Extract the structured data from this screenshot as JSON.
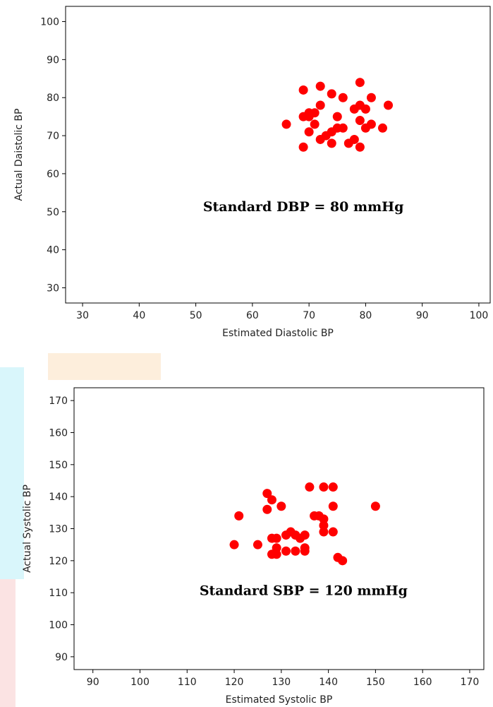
{
  "chart_data": [
    {
      "type": "scatter",
      "title": "",
      "xlabel": "Estimated Diastolic BP",
      "ylabel": "Actual Daistolic BP",
      "xlim": [
        27,
        102
      ],
      "ylim": [
        26,
        104
      ],
      "xticks": [
        30,
        40,
        50,
        60,
        70,
        80,
        90,
        100
      ],
      "yticks": [
        30,
        40,
        50,
        60,
        70,
        80,
        90,
        100
      ],
      "grid": false,
      "color": "#ff0000",
      "annotation": "Standard DBP = 80 mmHg",
      "points": [
        {
          "x": 66,
          "y": 73
        },
        {
          "x": 69,
          "y": 67
        },
        {
          "x": 69,
          "y": 75
        },
        {
          "x": 69,
          "y": 82
        },
        {
          "x": 70,
          "y": 71
        },
        {
          "x": 70,
          "y": 75
        },
        {
          "x": 70,
          "y": 76
        },
        {
          "x": 71,
          "y": 73
        },
        {
          "x": 71,
          "y": 76
        },
        {
          "x": 72,
          "y": 69
        },
        {
          "x": 72,
          "y": 78
        },
        {
          "x": 72,
          "y": 83
        },
        {
          "x": 73,
          "y": 70
        },
        {
          "x": 74,
          "y": 68
        },
        {
          "x": 74,
          "y": 71
        },
        {
          "x": 74,
          "y": 81
        },
        {
          "x": 75,
          "y": 72
        },
        {
          "x": 75,
          "y": 75
        },
        {
          "x": 76,
          "y": 72
        },
        {
          "x": 76,
          "y": 80
        },
        {
          "x": 77,
          "y": 68
        },
        {
          "x": 78,
          "y": 69
        },
        {
          "x": 78,
          "y": 77
        },
        {
          "x": 79,
          "y": 67
        },
        {
          "x": 79,
          "y": 74
        },
        {
          "x": 79,
          "y": 78
        },
        {
          "x": 79,
          "y": 84
        },
        {
          "x": 80,
          "y": 72
        },
        {
          "x": 80,
          "y": 77
        },
        {
          "x": 81,
          "y": 73
        },
        {
          "x": 81,
          "y": 80
        },
        {
          "x": 83,
          "y": 72
        },
        {
          "x": 84,
          "y": 78
        }
      ]
    },
    {
      "type": "scatter",
      "title": "",
      "xlabel": "Estimated Systolic BP",
      "ylabel": "Actual Systolic BP",
      "xlim": [
        86,
        173
      ],
      "ylim": [
        86,
        174
      ],
      "xticks": [
        90,
        100,
        110,
        120,
        130,
        140,
        150,
        160,
        170
      ],
      "yticks": [
        90,
        100,
        110,
        120,
        130,
        140,
        150,
        160,
        170
      ],
      "grid": false,
      "color": "#ff0000",
      "annotation": "Standard SBP = 120 mmHg",
      "points": [
        {
          "x": 120,
          "y": 125
        },
        {
          "x": 121,
          "y": 134
        },
        {
          "x": 125,
          "y": 125
        },
        {
          "x": 127,
          "y": 136
        },
        {
          "x": 127,
          "y": 141
        },
        {
          "x": 128,
          "y": 122
        },
        {
          "x": 128,
          "y": 127
        },
        {
          "x": 128,
          "y": 139
        },
        {
          "x": 129,
          "y": 122
        },
        {
          "x": 129,
          "y": 124
        },
        {
          "x": 129,
          "y": 127
        },
        {
          "x": 130,
          "y": 137
        },
        {
          "x": 131,
          "y": 123
        },
        {
          "x": 131,
          "y": 128
        },
        {
          "x": 132,
          "y": 129
        },
        {
          "x": 133,
          "y": 123
        },
        {
          "x": 133,
          "y": 128
        },
        {
          "x": 134,
          "y": 127
        },
        {
          "x": 135,
          "y": 123
        },
        {
          "x": 135,
          "y": 124
        },
        {
          "x": 135,
          "y": 128
        },
        {
          "x": 136,
          "y": 143
        },
        {
          "x": 137,
          "y": 134
        },
        {
          "x": 138,
          "y": 134
        },
        {
          "x": 139,
          "y": 129
        },
        {
          "x": 139,
          "y": 131
        },
        {
          "x": 139,
          "y": 133
        },
        {
          "x": 139,
          "y": 143
        },
        {
          "x": 141,
          "y": 129
        },
        {
          "x": 141,
          "y": 137
        },
        {
          "x": 141,
          "y": 143
        },
        {
          "x": 142,
          "y": 121
        },
        {
          "x": 143,
          "y": 120
        },
        {
          "x": 150,
          "y": 137
        }
      ]
    }
  ]
}
